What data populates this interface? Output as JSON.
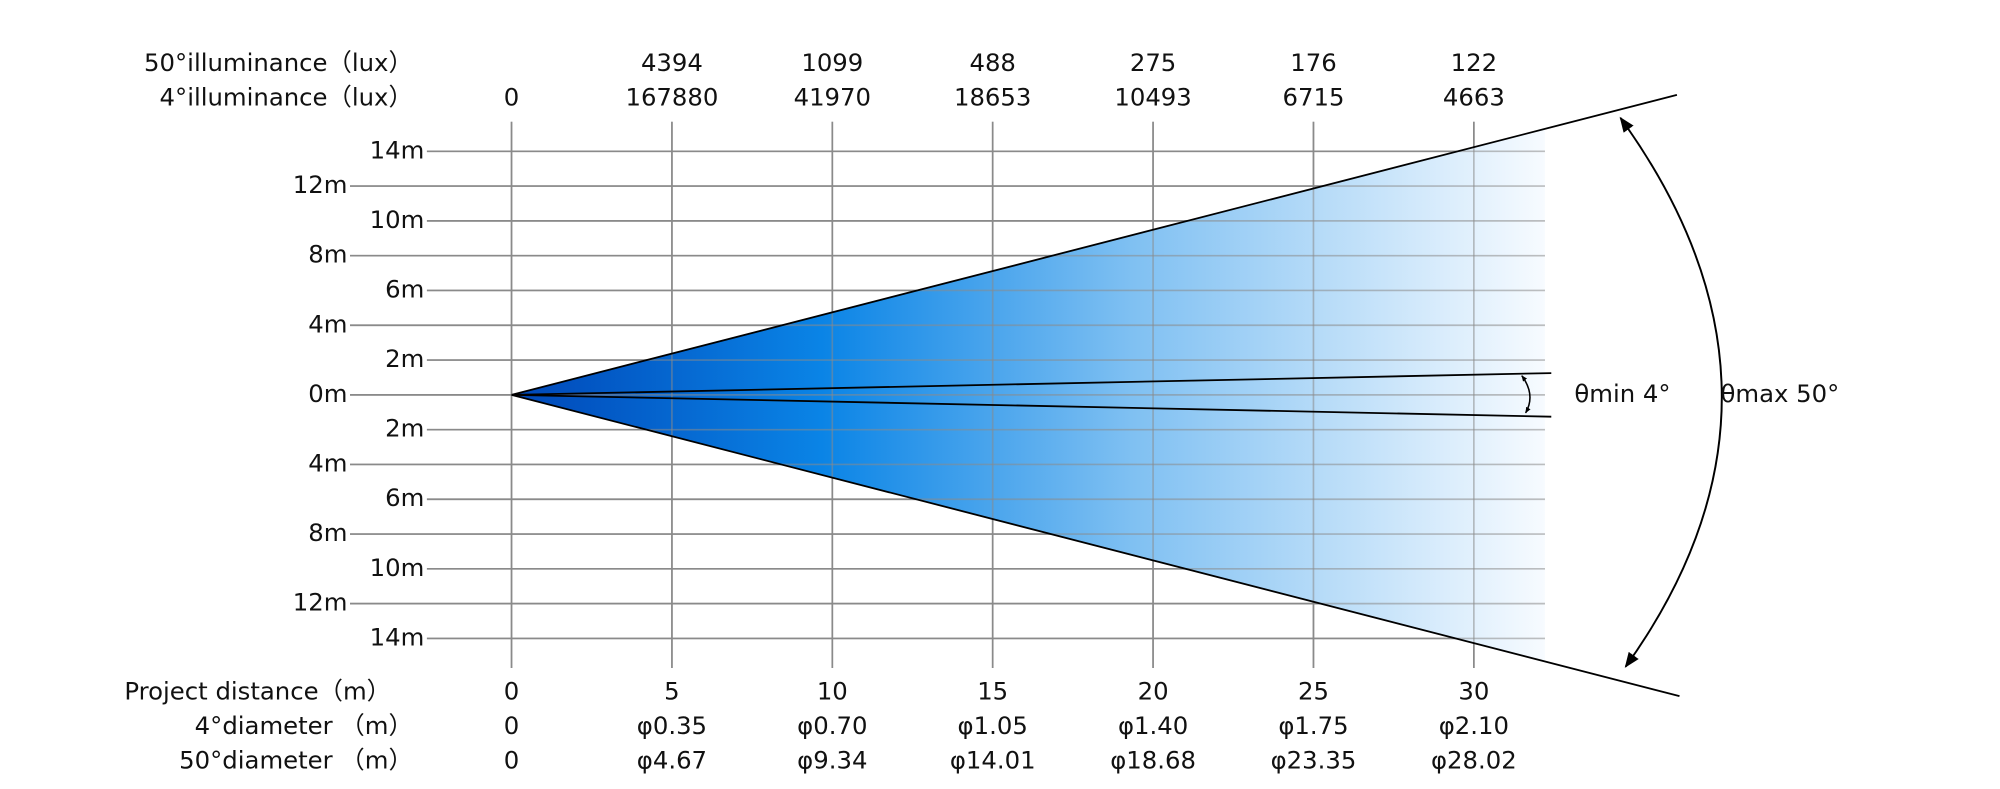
{
  "header": {
    "rows": [
      {
        "label": "50°illuminance（lux）",
        "values": [
          "4394",
          "1099",
          "488",
          "275",
          "176",
          "122"
        ]
      },
      {
        "label": "4°illuminance（lux）",
        "values": [
          "0",
          "167880",
          "41970",
          "18653",
          "10493",
          "6715",
          "4663"
        ]
      }
    ]
  },
  "footer": {
    "rows": [
      {
        "label": "Project distance（m）",
        "values": [
          "0",
          "5",
          "10",
          "15",
          "20",
          "25",
          "30"
        ]
      },
      {
        "label": "4°diameter （m）",
        "values": [
          "0",
          "φ0.35",
          "φ0.70",
          "φ1.05",
          "φ1.40",
          "φ1.75",
          "φ2.10"
        ]
      },
      {
        "label": "50°diameter （m）",
        "values": [
          "0",
          "φ4.67",
          "φ9.34",
          "φ14.01",
          "φ18.68",
          "φ23.35",
          "φ28.02"
        ]
      }
    ]
  },
  "height_labels": {
    "outer": [
      "12m",
      "8m",
      "4m",
      "0m",
      "4m",
      "8m",
      "12m"
    ],
    "inner": [
      "14m",
      "10m",
      "6m",
      "2m",
      "2m",
      "6m",
      "10m",
      "14m"
    ]
  },
  "annotations": {
    "min_angle": "θmin 4°",
    "max_angle": "θmax 50°"
  }
}
